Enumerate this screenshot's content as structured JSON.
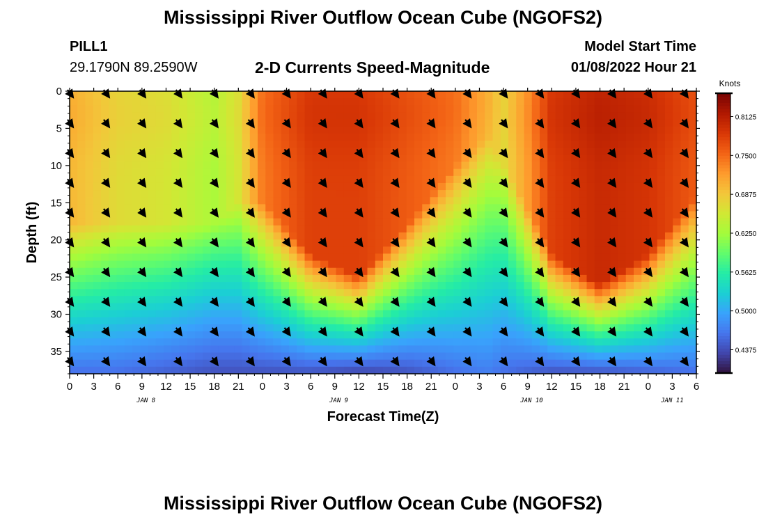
{
  "page": {
    "title": "Mississippi River Outflow Ocean Cube (NGOFS2)",
    "title_repeat": "Mississippi River Outflow Ocean Cube (NGOFS2)",
    "station": "PILL1",
    "coords": "29.1790N  89.2590W",
    "subtitle": "2-D Currents Speed-Magnitude",
    "model_start_label": "Model Start Time",
    "model_start_value": "01/08/2022 Hour 21"
  },
  "chart_data": {
    "type": "heatmap",
    "xlabel": "Forecast Time(Z)",
    "ylabel": "Depth (ft)",
    "colorbar_label": "Knots",
    "x_tick_labels": [
      "0",
      "3",
      "6",
      "9",
      "12",
      "15",
      "18",
      "21",
      "0",
      "3",
      "6",
      "9",
      "12",
      "15",
      "18",
      "21",
      "0",
      "3",
      "6",
      "9",
      "12",
      "15",
      "18",
      "21",
      "0",
      "3",
      "6"
    ],
    "date_labels": [
      {
        "label": "JAN 8",
        "hour": 9.5
      },
      {
        "label": "JAN 9",
        "hour": 33.5
      },
      {
        "label": "JAN 10",
        "hour": 57.5
      },
      {
        "label": "JAN 11",
        "hour": 75
      }
    ],
    "x_range_hours": [
      0,
      78
    ],
    "y_range_ft": [
      0,
      38
    ],
    "y_ticks": [
      0,
      5,
      10,
      15,
      20,
      25,
      30,
      35
    ],
    "colorbar_range": [
      0.4,
      0.85
    ],
    "colorbar_ticks": [
      "0.4375",
      "0.5000",
      "0.5625",
      "0.6250",
      "0.6875",
      "0.7500",
      "0.8125"
    ],
    "arrow_hours": [
      0,
      4.5,
      9,
      13.5,
      18,
      22.5,
      27,
      31.5,
      36,
      40.5,
      45,
      49.5,
      54,
      58.5,
      63,
      67.5,
      72,
      76.5
    ],
    "arrow_depths_ft": [
      0,
      4,
      8,
      12,
      16,
      20,
      24,
      28,
      32,
      36
    ],
    "arrow_direction": "southeast",
    "speed_profile": {
      "hours": [
        0,
        6,
        12,
        18,
        21,
        24,
        30,
        36,
        42,
        48,
        52,
        54,
        57,
        60,
        66,
        72,
        78
      ],
      "surface_knots": [
        0.7,
        0.67,
        0.66,
        0.63,
        0.66,
        0.74,
        0.78,
        0.78,
        0.76,
        0.74,
        0.7,
        0.67,
        0.72,
        0.78,
        0.8,
        0.79,
        0.76
      ],
      "core_depth_ft": [
        18,
        18,
        18,
        18,
        15,
        15,
        22,
        25,
        18,
        10,
        6,
        10,
        16,
        22,
        26,
        22,
        14
      ],
      "bottom_knots": [
        0.46,
        0.46,
        0.45,
        0.44,
        0.44,
        0.44,
        0.44,
        0.43,
        0.44,
        0.46,
        0.47,
        0.46,
        0.45,
        0.44,
        0.44,
        0.45,
        0.46
      ]
    },
    "colormap": [
      "#30123b",
      "#4145ab",
      "#4675ed",
      "#39a2fc",
      "#1bcfd4",
      "#24eca6",
      "#61fc6c",
      "#a4fc3b",
      "#d1e834",
      "#f3c63a",
      "#fe9b2d",
      "#f36315",
      "#d93806",
      "#b11901",
      "#7a0403"
    ]
  }
}
